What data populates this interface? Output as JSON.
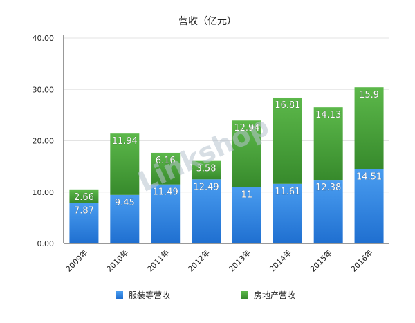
{
  "chart_data": {
    "type": "bar",
    "stacked": true,
    "title": "营收（亿元）",
    "categories": [
      "2009年",
      "2010年",
      "2011年",
      "2012年",
      "2013年",
      "2014年",
      "2015年",
      "2016年"
    ],
    "series": [
      {
        "name": "服装等营收",
        "values": [
          7.87,
          9.45,
          11.49,
          12.49,
          11,
          11.61,
          12.38,
          14.51
        ],
        "labels": [
          "7.87",
          "9.45",
          "11.49",
          "12.49",
          "11",
          "11.61",
          "12.38",
          "14.51"
        ],
        "color": "#2f86e4"
      },
      {
        "name": "房地产营收",
        "values": [
          2.66,
          11.94,
          6.16,
          3.58,
          12.94,
          16.81,
          14.13,
          15.9
        ],
        "labels": [
          "2.66",
          "11.94",
          "6.16",
          "3.58",
          "12.94",
          "16.81",
          "14.13",
          "15.9"
        ],
        "color": "#45a03a"
      }
    ],
    "ylim": [
      0,
      40
    ],
    "yticks": [
      "0.00",
      "10.00",
      "20.00",
      "30.00",
      "40.00"
    ],
    "grid": true,
    "legend": "bottom"
  },
  "watermark": "Linkshop"
}
